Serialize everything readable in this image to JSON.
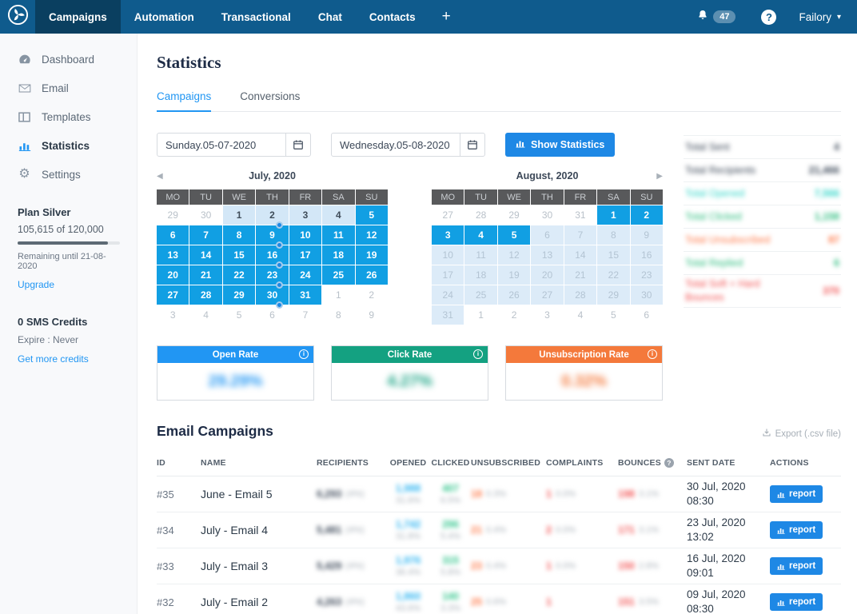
{
  "colors": {
    "navbar": "#0f5b8d",
    "navbar_active": "#0a3f60",
    "accent_blue": "#1e88e5",
    "tab_active": "#2196f3",
    "calendar_selected": "#119fe3",
    "calendar_range_light": "#d3e7f7",
    "dark": "#3c4858",
    "teal": "#2fd5c8",
    "green": "#2ebd7f",
    "orange": "#ff7a4a",
    "red": "#f25555",
    "opened_blue": "#2bb3f0",
    "clicked_green": "#2ec48a"
  },
  "navbar": {
    "items": [
      {
        "label": "Campaigns",
        "active": true
      },
      {
        "label": "Automation",
        "active": false
      },
      {
        "label": "Transactional",
        "active": false
      },
      {
        "label": "Chat",
        "active": false
      },
      {
        "label": "Contacts",
        "active": false
      }
    ],
    "plus_label": "+",
    "notification_count": "47",
    "help_label": "?",
    "account_name": "Failory",
    "caret": "▾"
  },
  "sidebar": {
    "items": [
      {
        "label": "Dashboard",
        "active": false
      },
      {
        "label": "Email",
        "active": false
      },
      {
        "label": "Templates",
        "active": false
      },
      {
        "label": "Statistics",
        "active": true
      },
      {
        "label": "Settings",
        "active": false
      }
    ],
    "plan": {
      "title": "Plan Silver",
      "usage": "105,615 of 120,000",
      "progress_pct": 88,
      "remaining": "Remaining until 21-08-2020",
      "upgrade_label": "Upgrade"
    },
    "sms": {
      "title": "0 SMS Credits",
      "expire": "Expire : Never",
      "link_label": "Get more credits"
    }
  },
  "main": {
    "title": "Statistics",
    "tabs": [
      {
        "label": "Campaigns",
        "active": true
      },
      {
        "label": "Conversions",
        "active": false
      }
    ],
    "date_from": "Sunday.05-07-2020",
    "date_to": "Wednesday.05-08-2020",
    "show_statistics_label": "Show Statistics"
  },
  "calendars": [
    {
      "title": "July, 2020",
      "prev_arrow": "◀",
      "next_arrow": "",
      "weekdays": [
        "MO",
        "TU",
        "WE",
        "TH",
        "FR",
        "SA",
        "SU"
      ],
      "weeks": [
        [
          {
            "d": "29",
            "s": "out"
          },
          {
            "d": "30",
            "s": "out"
          },
          {
            "d": "1",
            "s": "light"
          },
          {
            "d": "2",
            "s": "light",
            "dot": true
          },
          {
            "d": "3",
            "s": "light"
          },
          {
            "d": "4",
            "s": "light"
          },
          {
            "d": "5",
            "s": "sel"
          }
        ],
        [
          {
            "d": "6",
            "s": "sel"
          },
          {
            "d": "7",
            "s": "sel"
          },
          {
            "d": "8",
            "s": "sel"
          },
          {
            "d": "9",
            "s": "sel",
            "dot": true
          },
          {
            "d": "10",
            "s": "sel"
          },
          {
            "d": "11",
            "s": "sel"
          },
          {
            "d": "12",
            "s": "sel"
          }
        ],
        [
          {
            "d": "13",
            "s": "sel"
          },
          {
            "d": "14",
            "s": "sel"
          },
          {
            "d": "15",
            "s": "sel"
          },
          {
            "d": "16",
            "s": "sel",
            "dot": true
          },
          {
            "d": "17",
            "s": "sel"
          },
          {
            "d": "18",
            "s": "sel"
          },
          {
            "d": "19",
            "s": "sel"
          }
        ],
        [
          {
            "d": "20",
            "s": "sel"
          },
          {
            "d": "21",
            "s": "sel"
          },
          {
            "d": "22",
            "s": "sel"
          },
          {
            "d": "23",
            "s": "sel",
            "dot": true
          },
          {
            "d": "24",
            "s": "sel"
          },
          {
            "d": "25",
            "s": "sel"
          },
          {
            "d": "26",
            "s": "sel"
          }
        ],
        [
          {
            "d": "27",
            "s": "sel"
          },
          {
            "d": "28",
            "s": "sel"
          },
          {
            "d": "29",
            "s": "sel"
          },
          {
            "d": "30",
            "s": "sel",
            "dot": true
          },
          {
            "d": "31",
            "s": "sel"
          },
          {
            "d": "1",
            "s": "out"
          },
          {
            "d": "2",
            "s": "out"
          }
        ],
        [
          {
            "d": "3",
            "s": "out"
          },
          {
            "d": "4",
            "s": "out"
          },
          {
            "d": "5",
            "s": "out"
          },
          {
            "d": "6",
            "s": "out"
          },
          {
            "d": "7",
            "s": "out"
          },
          {
            "d": "8",
            "s": "out"
          },
          {
            "d": "9",
            "s": "out"
          }
        ]
      ]
    },
    {
      "title": "August, 2020",
      "prev_arrow": "",
      "next_arrow": "▶",
      "weekdays": [
        "MO",
        "TU",
        "WE",
        "TH",
        "FR",
        "SA",
        "SU"
      ],
      "weeks": [
        [
          {
            "d": "27",
            "s": "out"
          },
          {
            "d": "28",
            "s": "out"
          },
          {
            "d": "29",
            "s": "out"
          },
          {
            "d": "30",
            "s": "out"
          },
          {
            "d": "31",
            "s": "out"
          },
          {
            "d": "1",
            "s": "sel"
          },
          {
            "d": "2",
            "s": "sel"
          }
        ],
        [
          {
            "d": "3",
            "s": "sel"
          },
          {
            "d": "4",
            "s": "sel"
          },
          {
            "d": "5",
            "s": "sel"
          },
          {
            "d": "6",
            "s": "muted"
          },
          {
            "d": "7",
            "s": "muted"
          },
          {
            "d": "8",
            "s": "muted"
          },
          {
            "d": "9",
            "s": "muted"
          }
        ],
        [
          {
            "d": "10",
            "s": "muted"
          },
          {
            "d": "11",
            "s": "muted"
          },
          {
            "d": "12",
            "s": "muted"
          },
          {
            "d": "13",
            "s": "muted"
          },
          {
            "d": "14",
            "s": "muted"
          },
          {
            "d": "15",
            "s": "muted"
          },
          {
            "d": "16",
            "s": "muted"
          }
        ],
        [
          {
            "d": "17",
            "s": "muted"
          },
          {
            "d": "18",
            "s": "muted"
          },
          {
            "d": "19",
            "s": "muted"
          },
          {
            "d": "20",
            "s": "muted"
          },
          {
            "d": "21",
            "s": "muted"
          },
          {
            "d": "22",
            "s": "muted"
          },
          {
            "d": "23",
            "s": "muted"
          }
        ],
        [
          {
            "d": "24",
            "s": "muted"
          },
          {
            "d": "25",
            "s": "muted"
          },
          {
            "d": "26",
            "s": "muted"
          },
          {
            "d": "27",
            "s": "muted"
          },
          {
            "d": "28",
            "s": "muted"
          },
          {
            "d": "29",
            "s": "muted"
          },
          {
            "d": "30",
            "s": "muted"
          }
        ],
        [
          {
            "d": "31",
            "s": "muted"
          },
          {
            "d": "1",
            "s": "out"
          },
          {
            "d": "2",
            "s": "out"
          },
          {
            "d": "3",
            "s": "out"
          },
          {
            "d": "4",
            "s": "out"
          },
          {
            "d": "5",
            "s": "out"
          },
          {
            "d": "6",
            "s": "out"
          }
        ]
      ]
    }
  ],
  "totals": {
    "note": "values shown blurred/redacted in UI",
    "rows": [
      {
        "label": "Total Sent",
        "value": "4",
        "color": "dark"
      },
      {
        "label": "Total Recipients",
        "value": "21,466",
        "color": "dark"
      },
      {
        "label": "Total Opened",
        "value": "7,566",
        "color": "teal"
      },
      {
        "label": "Total Clicked",
        "value": "1,158",
        "color": "green"
      },
      {
        "label": "Total Unsubscribed",
        "value": "87",
        "color": "orange"
      },
      {
        "label": "Total Replied",
        "value": "6",
        "color": "green"
      },
      {
        "label": "Total Soft + Hard Bounces",
        "value": "370",
        "color": "red"
      }
    ]
  },
  "rate_cards": [
    {
      "title": "Open Rate",
      "value": "29.29%",
      "accent": "#2196f3",
      "info": "i"
    },
    {
      "title": "Click Rate",
      "value": "4.27%",
      "accent": "#14a181",
      "info": "i"
    },
    {
      "title": "Unsubscription Rate",
      "value": "0.32%",
      "accent": "#f4793b",
      "info": "i"
    }
  ],
  "campaigns_table": {
    "title": "Email Campaigns",
    "export_label": "Export (.csv file)",
    "columns": [
      "ID",
      "NAME",
      "RECIPIENTS",
      "OPENED",
      "CLICKED",
      "UNSUBSCRIBED",
      "COMPLAINTS",
      "BOUNCES",
      "SENT DATE",
      "ACTIONS"
    ],
    "report_label": "report",
    "rows": [
      {
        "id": "#35",
        "name": "June - Email 5",
        "recipients": "6,293",
        "recipients_pct": "(4%)",
        "opened": "1,988",
        "opened_pct": "31.6%",
        "clicked": "407",
        "clicked_pct": "6.5%",
        "unsub": "18",
        "unsub_pct": "0.3%",
        "complaints": "1",
        "complaints_pct": "0.0%",
        "bounces": "198",
        "bounces_pct": "3.1%",
        "date": "30 Jul, 2020",
        "time": "08:30"
      },
      {
        "id": "#34",
        "name": "July - Email 4",
        "recipients": "5,481",
        "recipients_pct": "(4%)",
        "opened": "1,742",
        "opened_pct": "31.8%",
        "clicked": "296",
        "clicked_pct": "5.4%",
        "unsub": "21",
        "unsub_pct": "0.4%",
        "complaints": "2",
        "complaints_pct": "0.0%",
        "bounces": "171",
        "bounces_pct": "3.1%",
        "date": "23 Jul, 2020",
        "time": "13:02"
      },
      {
        "id": "#33",
        "name": "July - Email 3",
        "recipients": "5,429",
        "recipients_pct": "(4%)",
        "opened": "1,976",
        "opened_pct": "36.4%",
        "clicked": "315",
        "clicked_pct": "5.8%",
        "unsub": "23",
        "unsub_pct": "0.4%",
        "complaints": "1",
        "complaints_pct": "0.0%",
        "bounces": "150",
        "bounces_pct": "2.8%",
        "date": "16 Jul, 2020",
        "time": "09:01"
      },
      {
        "id": "#32",
        "name": "July - Email 2",
        "recipients": "4,263",
        "recipients_pct": "(4%)",
        "opened": "1,860",
        "opened_pct": "43.6%",
        "clicked": "140",
        "clicked_pct": "3.3%",
        "unsub": "25",
        "unsub_pct": "0.6%",
        "complaints": "1",
        "complaints_pct": "",
        "bounces": "151",
        "bounces_pct": "3.5%",
        "date": "09 Jul, 2020",
        "time": "08:30"
      }
    ]
  }
}
